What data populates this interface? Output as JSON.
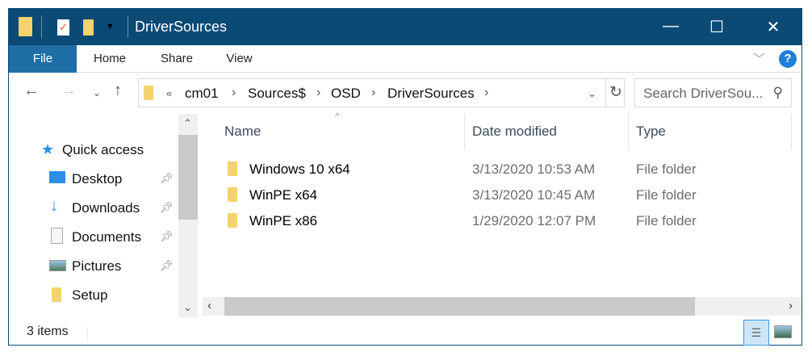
{
  "window": {
    "title": "DriverSources",
    "minimize": "—",
    "maximize": "☐",
    "close": "✕"
  },
  "ribbon": {
    "tabs": [
      "File",
      "Home",
      "Share",
      "View"
    ],
    "collapse": "﹀",
    "help": "?"
  },
  "address": {
    "overflow": "«",
    "crumbs": [
      "cm01",
      "Sources$",
      "OSD",
      "DriverSources"
    ],
    "search_placeholder": "Search DriverSou..."
  },
  "nav": {
    "quick_access": "Quick access",
    "items": [
      {
        "label": "Desktop",
        "pinned": true
      },
      {
        "label": "Downloads",
        "pinned": true
      },
      {
        "label": "Documents",
        "pinned": true
      },
      {
        "label": "Pictures",
        "pinned": true
      },
      {
        "label": "Setup",
        "pinned": false
      }
    ]
  },
  "columns": [
    "Name",
    "Date modified",
    "Type"
  ],
  "files": [
    {
      "name": "Windows 10 x64",
      "date": "3/13/2020 10:53 AM",
      "type": "File folder"
    },
    {
      "name": "WinPE x64",
      "date": "3/13/2020 10:45 AM",
      "type": "File folder"
    },
    {
      "name": "WinPE x86",
      "date": "1/29/2020 12:07 PM",
      "type": "File folder"
    }
  ],
  "status": {
    "count": "3 items"
  },
  "colors": {
    "titlebar": "#0b4a75",
    "file_tab": "#1f6ea5",
    "folder": "#f3d36e"
  }
}
